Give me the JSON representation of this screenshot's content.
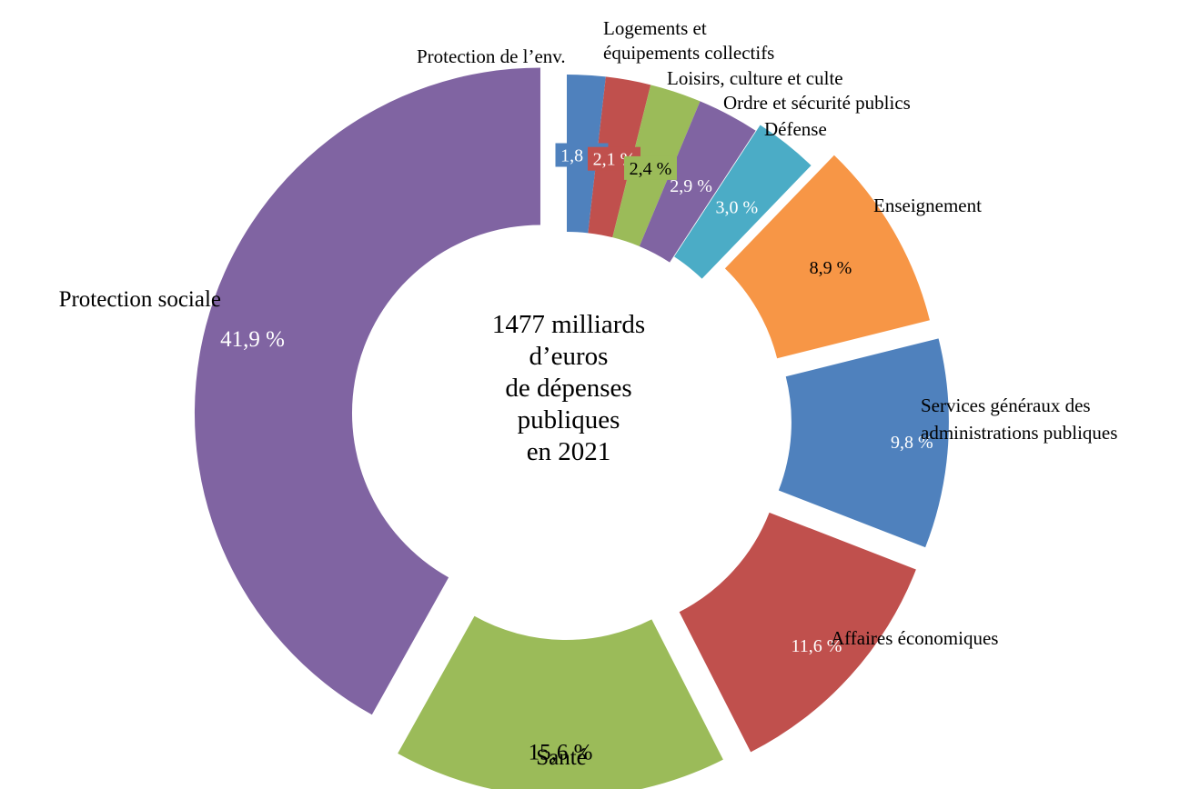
{
  "chart_data": {
    "type": "pie",
    "donut": true,
    "center_text": [
      "1477 milliards",
      "d’euros",
      "de dépenses",
      "publiques",
      "en 2021"
    ],
    "slices": [
      {
        "label": "Protection de l’env.",
        "value": 1.8,
        "value_label": "1,8 %",
        "color": "#4f81bd"
      },
      {
        "label": "Logements et équipements collectifs",
        "value": 2.1,
        "value_label": "2,1 %",
        "color": "#c0504d"
      },
      {
        "label": "Loisirs, culture et culte",
        "value": 2.4,
        "value_label": "2,4 %",
        "color": "#9bbb59"
      },
      {
        "label": "Ordre et sécurité publics",
        "value": 2.9,
        "value_label": "2,9 %",
        "color": "#8064a2"
      },
      {
        "label": "Défense",
        "value": 3.0,
        "value_label": "3,0 %",
        "color": "#4bacc6"
      },
      {
        "label": "Enseignement",
        "value": 8.9,
        "value_label": "8,9 %",
        "color": "#f79646"
      },
      {
        "label": "Services généraux des administrations publiques",
        "value": 9.8,
        "value_label": "9,8 %",
        "color": "#4f81bd"
      },
      {
        "label": "Affaires économiques",
        "value": 11.6,
        "value_label": "11,6 %",
        "color": "#c0504d"
      },
      {
        "label": "Santé",
        "value": 15.6,
        "value_label": "15,6 %",
        "color": "#9bbb59"
      },
      {
        "label": "Protection sociale",
        "value": 41.9,
        "value_label": "41,9 %",
        "color": "#8064a2"
      }
    ]
  }
}
